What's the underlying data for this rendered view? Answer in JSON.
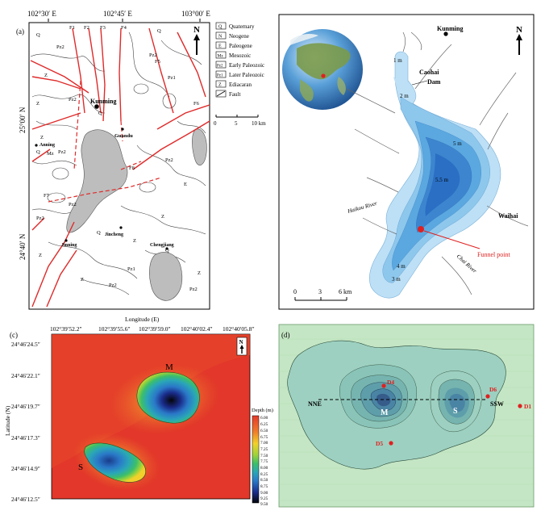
{
  "panel_a": {
    "label": "(a)",
    "top_coords": [
      "102°30′ E",
      "102°45′ E",
      "103°00′ E"
    ],
    "left_coords": [
      "25°00′ N",
      "24°40′ N"
    ],
    "north": "N",
    "legend": [
      {
        "code": "Q",
        "text": "Quaternary"
      },
      {
        "code": "N",
        "text": "Neogene"
      },
      {
        "code": "E",
        "text": "Paleogene"
      },
      {
        "code": "Mz",
        "text": "Mesozoic"
      },
      {
        "code": "Pz2",
        "text": "Early Paleozoic"
      },
      {
        "code": "Pz1",
        "text": "Later Paleozoic"
      },
      {
        "code": "Z",
        "text": "Ediacaran"
      },
      {
        "code": "F",
        "text": "Fault"
      }
    ],
    "scale": {
      "ticks": [
        "0",
        "5",
        "10 km"
      ]
    },
    "places": [
      "Kunming",
      "Guandu",
      "Anning",
      "Jinning",
      "Jincheng",
      "Chengjiang"
    ],
    "fault_labels": [
      "F1",
      "F2",
      "F3",
      "F4",
      "F5",
      "F6",
      "F7",
      "F8"
    ],
    "unit_labels": [
      "Q",
      "Z",
      "Mz",
      "Pz1",
      "Pz2",
      "E",
      "N"
    ]
  },
  "panel_b": {
    "places": [
      "Kunming",
      "Caohai",
      "Dam",
      "Waihai"
    ],
    "depths": [
      "1 m",
      "2 m",
      "5 m",
      "5.5 m",
      "4 m",
      "3 m"
    ],
    "rivers": [
      "Haikou River",
      "Chai River"
    ],
    "funnel": "Funnel point",
    "north": "N",
    "scale": [
      "0",
      "3",
      "6 km"
    ],
    "colors": {
      "shallow": "#a8d4f0",
      "mid": "#5ba8e0",
      "deep": "#2a6fc4",
      "funnel": "#e02020"
    }
  },
  "panel_c": {
    "label": "(c)",
    "x_title": "Longitude (E)",
    "x_ticks": [
      "102°39′52.2″",
      "102°39′55.6″",
      "102°39′59.0″",
      "102°40′02.4″",
      "102°40′05.8″"
    ],
    "y_title": "Latitude (N)",
    "y_ticks": [
      "24°46′24.5″",
      "24°46′22.1″",
      "24°46′19.7″",
      "24°46′17.3″",
      "24°46′14.9″",
      "24°46′12.5″"
    ],
    "features": [
      "M",
      "S"
    ],
    "north": "N",
    "colorbar_title": "Depth (m)",
    "colorbar_ticks": [
      "6.00",
      "6.25",
      "6.50",
      "6.75",
      "7.00",
      "7.25",
      "7.50",
      "7.75",
      "8.00",
      "8.25",
      "8.50",
      "8.75",
      "9.00",
      "9.25",
      "9.50"
    ]
  },
  "panel_d": {
    "label": "(d)",
    "features": [
      "M",
      "S"
    ],
    "profile": [
      "NNE",
      "SSW"
    ],
    "points": [
      "D4",
      "D5",
      "D6",
      "D1"
    ]
  }
}
